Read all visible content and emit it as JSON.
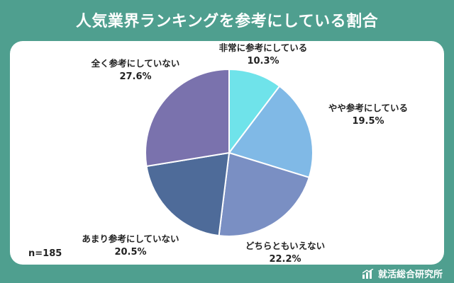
{
  "title": "人気業界ランキングを参考にしている割合",
  "sample_size": "n=185",
  "brand": {
    "name": "就活総合研究所",
    "icon": "bar-chart-growth-icon"
  },
  "colors": {
    "background": "#4f9f8f",
    "card": "#ffffff",
    "slices": [
      "#6fe3ea",
      "#80b9e6",
      "#7a8fc3",
      "#4e6b99",
      "#7a72ad"
    ]
  },
  "chart_data": {
    "type": "pie",
    "start": "top",
    "direction": "clockwise",
    "slices": [
      {
        "label": "非常に参考にしている",
        "value": 10.3,
        "value_text": "10.3%"
      },
      {
        "label": "やや参考にしている",
        "value": 19.5,
        "value_text": "19.5%"
      },
      {
        "label": "どちらともいえない",
        "value": 22.2,
        "value_text": "22.2%"
      },
      {
        "label": "あまり参考にしていない",
        "value": 20.5,
        "value_text": "20.5%"
      },
      {
        "label": "全く参考にしていない",
        "value": 27.6,
        "value_text": "27.6%"
      }
    ]
  }
}
